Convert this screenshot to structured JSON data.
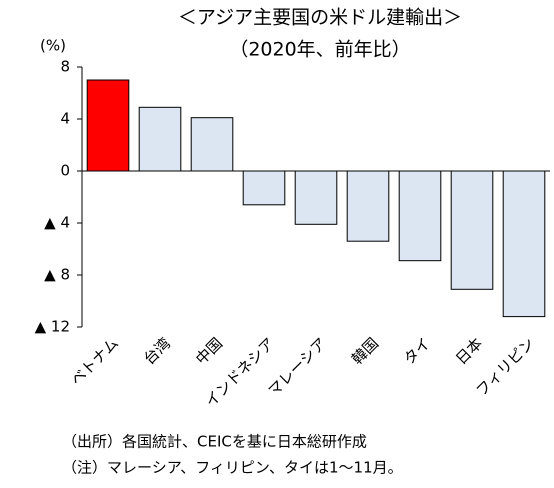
{
  "chart_data": {
    "type": "bar",
    "title": "＜アジア主要国の米ドル建輸出＞",
    "subtitle": "（2020年、前年比）",
    "y_axis_label": "(%)",
    "categories": [
      "ベトナム",
      "台湾",
      "中国",
      "インドネシア",
      "マレーシア",
      "韓国",
      "タイ",
      "日本",
      "フィリピン"
    ],
    "values": [
      7.0,
      4.9,
      4.1,
      -2.6,
      -4.1,
      -5.4,
      -6.9,
      -9.1,
      -11.2
    ],
    "colors": [
      "#ff0000",
      "#dce6f2",
      "#dce6f2",
      "#dce6f2",
      "#dce6f2",
      "#dce6f2",
      "#dce6f2",
      "#dce6f2",
      "#dce6f2"
    ],
    "ylim": [
      -12,
      8
    ],
    "yticks": [
      {
        "value": -12,
        "label": "▲ 12"
      },
      {
        "value": -8,
        "label": "▲ 8"
      },
      {
        "value": -4,
        "label": "▲ 4"
      },
      0,
      4,
      8
    ],
    "notes": [
      "（出所）各国統計、CEICを基に日本総研作成",
      "（注）マレーシア、フィリピン、タイは1～11月。"
    ]
  }
}
